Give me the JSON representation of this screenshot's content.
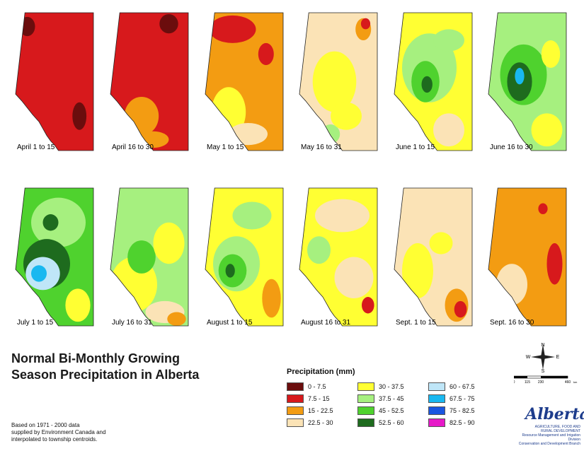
{
  "title_lines": [
    "Normal Bi-Monthly Growing",
    "Season Precipitation in Alberta"
  ],
  "note_lines": [
    "Based on 1971 - 2000 data",
    "supplied by Environment Canada and",
    "interpolated to township centroids."
  ],
  "legend": {
    "title": "Precipitation (mm)",
    "items": [
      {
        "label": "0 - 7.5",
        "color": "#6b0d0d"
      },
      {
        "label": "7.5 - 15",
        "color": "#d7191c"
      },
      {
        "label": "15 - 22.5",
        "color": "#f39c12"
      },
      {
        "label": "22.5 - 30",
        "color": "#fbe3b6"
      },
      {
        "label": "30 - 37.5",
        "color": "#ffff33"
      },
      {
        "label": "37.5 - 45",
        "color": "#a6f07f"
      },
      {
        "label": "45 - 52.5",
        "color": "#4fd22e"
      },
      {
        "label": "52.5 - 60",
        "color": "#1e6b1e"
      },
      {
        "label": "60 - 67.5",
        "color": "#bfe6f8"
      },
      {
        "label": "67.5 - 75",
        "color": "#19b8f0"
      },
      {
        "label": "75 - 82.5",
        "color": "#1a56e0"
      },
      {
        "label": "82.5 - 90",
        "color": "#e619c8"
      }
    ]
  },
  "maps": [
    {
      "label": "April 1 to 15",
      "base": 1,
      "patches": [
        [
          0,
          0.15,
          0.1,
          0.1,
          0.07
        ],
        [
          0,
          0.82,
          0.75,
          0.09,
          0.1
        ]
      ]
    },
    {
      "label": "April 16 to 30",
      "base": 1,
      "patches": [
        [
          2,
          0.4,
          0.75,
          0.22,
          0.14
        ],
        [
          2,
          0.55,
          0.92,
          0.2,
          0.06
        ],
        [
          0,
          0.75,
          0.08,
          0.12,
          0.07
        ]
      ]
    },
    {
      "label": "May 1 to 15",
      "base": 2,
      "patches": [
        [
          1,
          0.35,
          0.12,
          0.3,
          0.1
        ],
        [
          4,
          0.3,
          0.72,
          0.22,
          0.18
        ],
        [
          3,
          0.55,
          0.88,
          0.25,
          0.08
        ],
        [
          1,
          0.78,
          0.3,
          0.1,
          0.08
        ]
      ]
    },
    {
      "label": "May 16 to 31",
      "base": 3,
      "patches": [
        [
          4,
          0.45,
          0.5,
          0.28,
          0.22
        ],
        [
          2,
          0.82,
          0.12,
          0.1,
          0.08
        ],
        [
          1,
          0.85,
          0.08,
          0.06,
          0.04
        ],
        [
          5,
          0.4,
          0.88,
          0.12,
          0.07
        ],
        [
          4,
          0.6,
          0.75,
          0.2,
          0.1
        ]
      ]
    },
    {
      "label": "June 1 to 15",
      "base": 4,
      "patches": [
        [
          5,
          0.45,
          0.4,
          0.35,
          0.25
        ],
        [
          6,
          0.4,
          0.5,
          0.18,
          0.15
        ],
        [
          7,
          0.42,
          0.52,
          0.07,
          0.06
        ],
        [
          3,
          0.7,
          0.85,
          0.2,
          0.12
        ],
        [
          5,
          0.7,
          0.2,
          0.2,
          0.08
        ]
      ]
    },
    {
      "label": "June 16 to 30",
      "base": 5,
      "patches": [
        [
          6,
          0.45,
          0.45,
          0.3,
          0.22
        ],
        [
          7,
          0.4,
          0.5,
          0.16,
          0.14
        ],
        [
          9,
          0.4,
          0.46,
          0.06,
          0.06
        ],
        [
          4,
          0.75,
          0.85,
          0.2,
          0.12
        ],
        [
          4,
          0.8,
          0.3,
          0.12,
          0.1
        ]
      ]
    },
    {
      "label": "July 1 to 15",
      "base": 6,
      "patches": [
        [
          5,
          0.55,
          0.25,
          0.35,
          0.18
        ],
        [
          7,
          0.4,
          0.55,
          0.3,
          0.18
        ],
        [
          8,
          0.35,
          0.62,
          0.22,
          0.12
        ],
        [
          9,
          0.3,
          0.62,
          0.1,
          0.06
        ],
        [
          4,
          0.8,
          0.85,
          0.16,
          0.12
        ],
        [
          7,
          0.45,
          0.25,
          0.1,
          0.06
        ]
      ]
    },
    {
      "label": "July 16 to 31",
      "base": 5,
      "patches": [
        [
          4,
          0.3,
          0.7,
          0.3,
          0.2
        ],
        [
          6,
          0.4,
          0.5,
          0.18,
          0.12
        ],
        [
          4,
          0.75,
          0.4,
          0.2,
          0.15
        ],
        [
          3,
          0.7,
          0.9,
          0.25,
          0.08
        ],
        [
          2,
          0.85,
          0.95,
          0.12,
          0.05
        ]
      ]
    },
    {
      "label": "August 1 to 15",
      "base": 4,
      "patches": [
        [
          5,
          0.4,
          0.55,
          0.3,
          0.2
        ],
        [
          6,
          0.35,
          0.6,
          0.18,
          0.12
        ],
        [
          7,
          0.32,
          0.6,
          0.06,
          0.05
        ],
        [
          2,
          0.85,
          0.8,
          0.12,
          0.14
        ],
        [
          5,
          0.6,
          0.2,
          0.25,
          0.1
        ]
      ]
    },
    {
      "label": "August 16 to 31",
      "base": 4,
      "patches": [
        [
          3,
          0.55,
          0.2,
          0.35,
          0.12
        ],
        [
          5,
          0.25,
          0.45,
          0.15,
          0.1
        ],
        [
          3,
          0.7,
          0.65,
          0.25,
          0.15
        ],
        [
          1,
          0.88,
          0.85,
          0.08,
          0.06
        ]
      ]
    },
    {
      "label": "Sept. 1 to 15",
      "base": 3,
      "patches": [
        [
          4,
          0.3,
          0.6,
          0.2,
          0.2
        ],
        [
          2,
          0.8,
          0.85,
          0.15,
          0.12
        ],
        [
          1,
          0.85,
          0.88,
          0.08,
          0.06
        ],
        [
          4,
          0.6,
          0.4,
          0.15,
          0.08
        ]
      ]
    },
    {
      "label": "Sept. 16 to 30",
      "base": 2,
      "patches": [
        [
          1,
          0.85,
          0.55,
          0.1,
          0.15
        ],
        [
          3,
          0.3,
          0.7,
          0.2,
          0.15
        ],
        [
          1,
          0.7,
          0.15,
          0.06,
          0.04
        ]
      ]
    }
  ],
  "compass": {
    "n": "N",
    "e": "E",
    "s": "S",
    "w": "W"
  },
  "scale": {
    "ticks": [
      "0",
      "115",
      "230",
      "460"
    ],
    "unit": "km"
  },
  "logo": {
    "name": "Alberta",
    "tagline_lines": [
      "AGRICULTURE, FOOD AND",
      "RURAL DEVELOPMENT",
      "Resource Management and Irrigation Division",
      "Conservation and Development Branch"
    ]
  }
}
